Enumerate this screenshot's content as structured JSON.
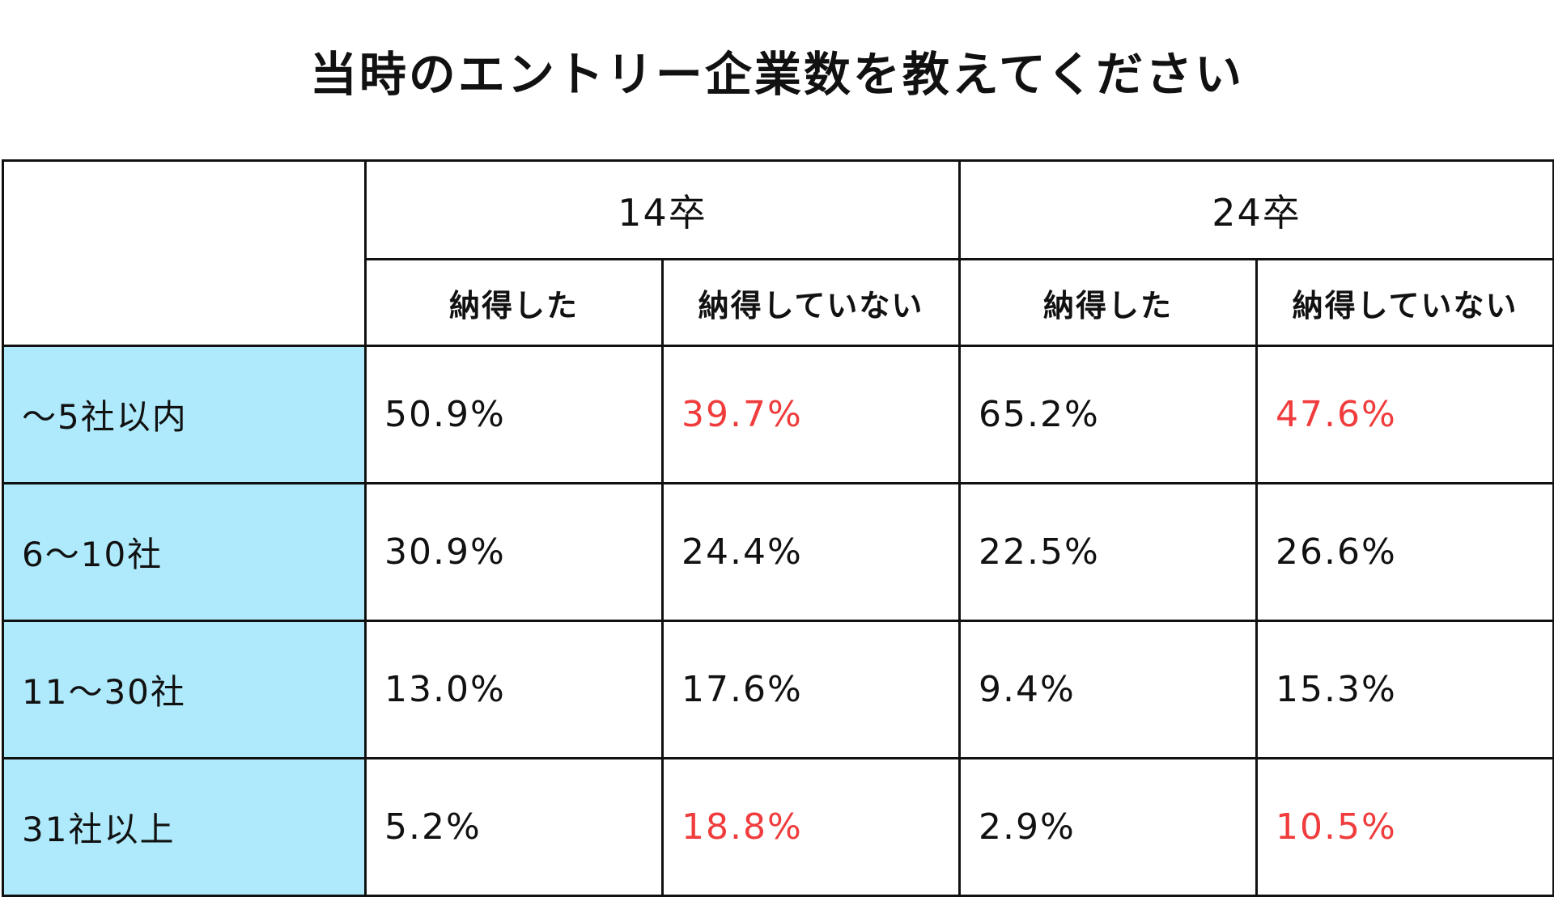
{
  "chart_data": {
    "type": "table",
    "title": "当時のエントリー企業数を教えてください",
    "groups": [
      {
        "label": "14卒",
        "columns": [
          "納得した",
          "納得していない"
        ]
      },
      {
        "label": "24卒",
        "columns": [
          "納得した",
          "納得していない"
        ]
      }
    ],
    "rows": [
      {
        "label": "～5社以内",
        "values": [
          "50.9%",
          "39.7%",
          "65.2%",
          "47.6%"
        ],
        "highlight": [
          false,
          true,
          false,
          true
        ]
      },
      {
        "label": "6～10社",
        "values": [
          "30.9%",
          "24.4%",
          "22.5%",
          "26.6%"
        ],
        "highlight": [
          false,
          false,
          false,
          false
        ]
      },
      {
        "label": "11～30社",
        "values": [
          "13.0%",
          "17.6%",
          "9.4%",
          "15.3%"
        ],
        "highlight": [
          false,
          false,
          false,
          false
        ]
      },
      {
        "label": "31社以上",
        "values": [
          "5.2%",
          "18.8%",
          "2.9%",
          "10.5%"
        ],
        "highlight": [
          false,
          true,
          false,
          true
        ]
      }
    ],
    "colors": {
      "row_label_bg": "#aeeafb",
      "highlight_text": "#f03c3c",
      "text": "#111111",
      "border": "#111111"
    }
  }
}
